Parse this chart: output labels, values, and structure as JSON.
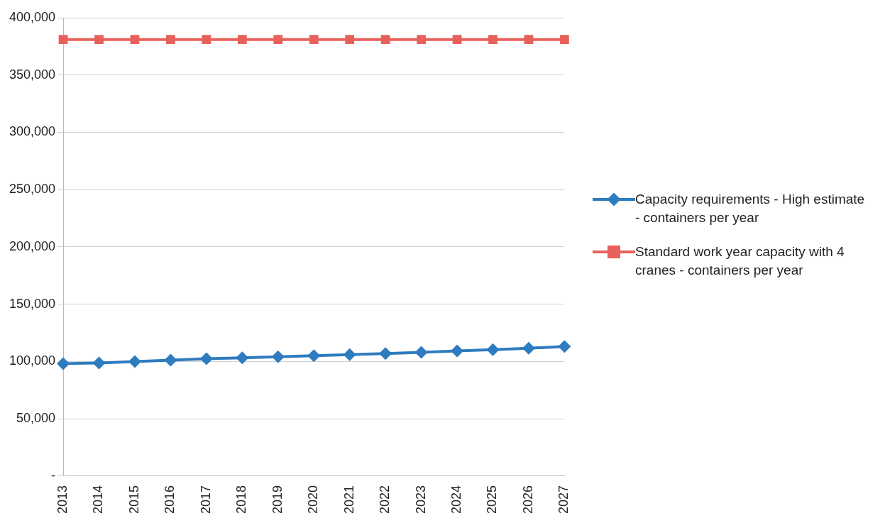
{
  "chart_data": {
    "type": "line",
    "categories": [
      "2013",
      "2014",
      "2015",
      "2016",
      "2017",
      "2018",
      "2019",
      "2020",
      "2021",
      "2022",
      "2023",
      "2024",
      "2025",
      "2026",
      "2027"
    ],
    "series": [
      {
        "name": "Capacity requirements - High estimate - containers per year",
        "color": "#2e7bbf",
        "marker": "diamond",
        "values": [
          98200,
          98800,
          100000,
          101200,
          102400,
          103300,
          104200,
          105100,
          106000,
          106900,
          108000,
          109200,
          110400,
          111600,
          113100
        ]
      },
      {
        "name": "Standard work year capacity with 4 cranes - containers per year",
        "color": "#e8605a",
        "marker": "square",
        "values": [
          381000,
          381000,
          381000,
          381000,
          381000,
          381000,
          381000,
          381000,
          381000,
          381000,
          381000,
          381000,
          381000,
          381000,
          381000
        ]
      }
    ],
    "ylim": [
      0,
      400000
    ],
    "yticks": [
      {
        "value": 0,
        "label": "-"
      },
      {
        "value": 50000,
        "label": "50,000"
      },
      {
        "value": 100000,
        "label": "100,000"
      },
      {
        "value": 150000,
        "label": "150,000"
      },
      {
        "value": 200000,
        "label": "200,000"
      },
      {
        "value": 250000,
        "label": "250,000"
      },
      {
        "value": 300000,
        "label": "300,000"
      },
      {
        "value": 350000,
        "label": "350,000"
      },
      {
        "value": 400000,
        "label": "400,000"
      }
    ],
    "grid": "y",
    "legend": "right",
    "line_style": "solid"
  }
}
